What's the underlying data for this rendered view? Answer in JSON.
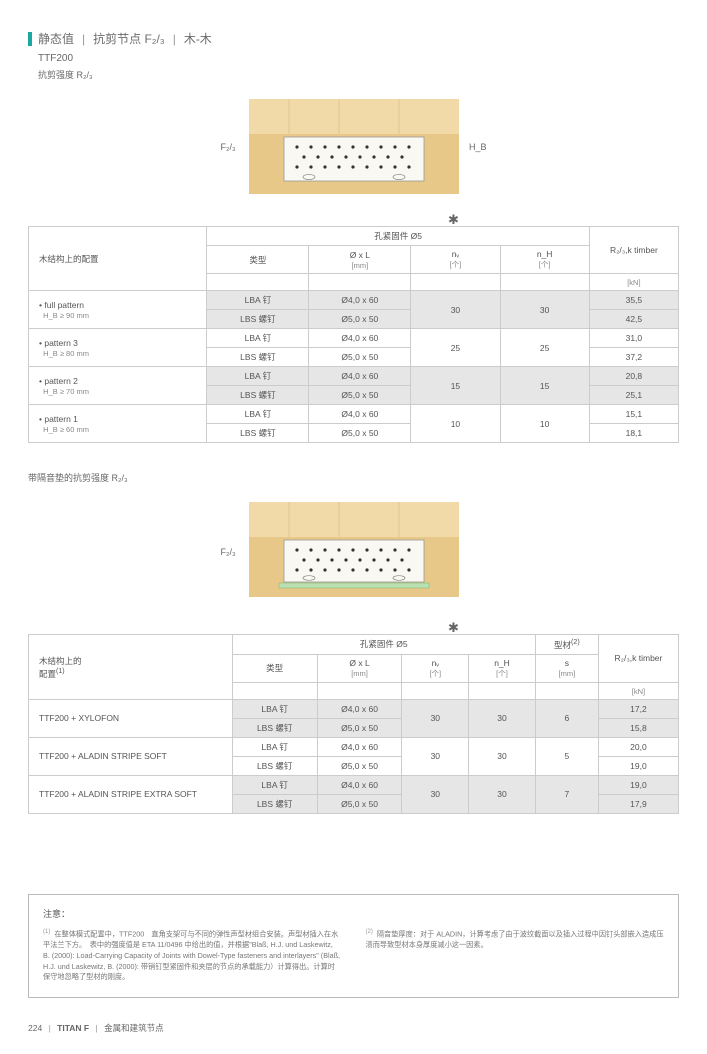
{
  "header": {
    "title_parts": [
      "静态值",
      "抗剪节点 F₂/₃",
      "木-木"
    ],
    "model": "TTF200",
    "subtitle": "抗剪强度 R₂/₃"
  },
  "diagram1": {
    "left_label": "F₂/₃",
    "right_label": "H_B"
  },
  "table1": {
    "config_head": "木结构上的配置",
    "fastener_group": "孔紧固件 Ø5",
    "col_type": "类型",
    "col_dims": "Ø x L",
    "col_dims_unit": "[mm]",
    "col_nv": "nᵥ",
    "col_nv_unit": "[个]",
    "col_nh": "n_H",
    "col_nh_unit": "[个]",
    "col_r": "R₂/₃,k timber",
    "col_r_unit": "[kN]",
    "rows": [
      {
        "pattern": "full pattern",
        "hb": "H_B ≥ 90 mm",
        "t1": "LBA 钉",
        "d1": "Ø4,0 x 60",
        "t2": "LBS 螺钉",
        "d2": "Ø5,0 x 50",
        "nv": "30",
        "nh": "30",
        "r1": "35,5",
        "r2": "42,5"
      },
      {
        "pattern": "pattern 3",
        "hb": "H_B ≥ 80 mm",
        "t1": "LBA 钉",
        "d1": "Ø4,0 x 60",
        "t2": "LBS 螺钉",
        "d2": "Ø5,0 x 50",
        "nv": "25",
        "nh": "25",
        "r1": "31,0",
        "r2": "37,2"
      },
      {
        "pattern": "pattern 2",
        "hb": "H_B ≥ 70 mm",
        "t1": "LBA 钉",
        "d1": "Ø4,0 x 60",
        "t2": "LBS 螺钉",
        "d2": "Ø5,0 x 50",
        "nv": "15",
        "nh": "15",
        "r1": "20,8",
        "r2": "25,1"
      },
      {
        "pattern": "pattern 1",
        "hb": "H_B ≥ 60 mm",
        "t1": "LBA 钉",
        "d1": "Ø4,0 x 60",
        "t2": "LBS 螺钉",
        "d2": "Ø5,0 x 50",
        "nv": "10",
        "nh": "10",
        "r1": "15,1",
        "r2": "18,1"
      }
    ]
  },
  "section2_title": "带隔音垫的抗剪强度 R₂/₃",
  "diagram2": {
    "left_label": "F₂/₃"
  },
  "table2": {
    "config_head": "木结构上的\n配置(1)",
    "fastener_group": "孔紧固件 Ø5",
    "col_type": "类型",
    "col_dims": "Ø x L",
    "col_dims_unit": "[mm]",
    "col_nv": "nᵥ",
    "col_nv_unit": "[个]",
    "col_nh": "n_H",
    "col_nh_unit": "[个]",
    "col_profile": "型材(2)",
    "col_s": "s",
    "col_s_unit": "[mm]",
    "col_r": "R₂/₃,k timber",
    "col_r_unit": "[kN]",
    "rows": [
      {
        "name": "TTF200 + XYLOFON",
        "t1": "LBA 钉",
        "d1": "Ø4,0 x 60",
        "t2": "LBS 螺钉",
        "d2": "Ø5,0 x 50",
        "nv": "30",
        "nh": "30",
        "s": "6",
        "r1": "17,2",
        "r2": "15,8"
      },
      {
        "name": "TTF200 + ALADIN STRIPE SOFT",
        "t1": "LBA 钉",
        "d1": "Ø4,0 x 60",
        "t2": "LBS 螺钉",
        "d2": "Ø5,0 x 50",
        "nv": "30",
        "nh": "30",
        "s": "5",
        "r1": "20,0",
        "r2": "19,0"
      },
      {
        "name": "TTF200 + ALADIN STRIPE EXTRA SOFT",
        "t1": "LBA 钉",
        "d1": "Ø4,0 x 60",
        "t2": "LBS 螺钉",
        "d2": "Ø5,0 x 50",
        "nv": "30",
        "nh": "30",
        "s": "7",
        "r1": "19,0",
        "r2": "17,9"
      }
    ]
  },
  "notes": {
    "title": "注意：",
    "n1": "在整体模式配置中，TTF200　直角支架可与不同的弹性声型材组合安装。声型材插入在水平法兰下方。　表中的强度值是 ETA 11/0496 中给出的值，并根据\"Blaß, H.J. und Laskewitz, B. (2000): Load-Carrying Capacity of Joints with Dowel-Type fasteners and interlayers\" (Blaß, H.J. und Laskewitz, B. (2000): 带销钉型紧固件和夹层的节点的承载能力）计算得出。计算时保守地忽略了型材的刚度。",
    "n2": "隔音垫厚度：对于 ALADIN，计算考虑了由于波纹截面以及插入过程中因钉头部嵌入造成压溃而导致型材本身厚度减小这一因素。"
  },
  "footer": {
    "page": "224",
    "brand": "TITAN F",
    "section": "金属和建筑节点"
  },
  "colors": {
    "wood_light": "#f2d9a8",
    "wood_dark": "#e8c888",
    "bracket": "#f5f5f0",
    "teal": "#1ba8a0",
    "grey_row": "#e6e6e6"
  }
}
